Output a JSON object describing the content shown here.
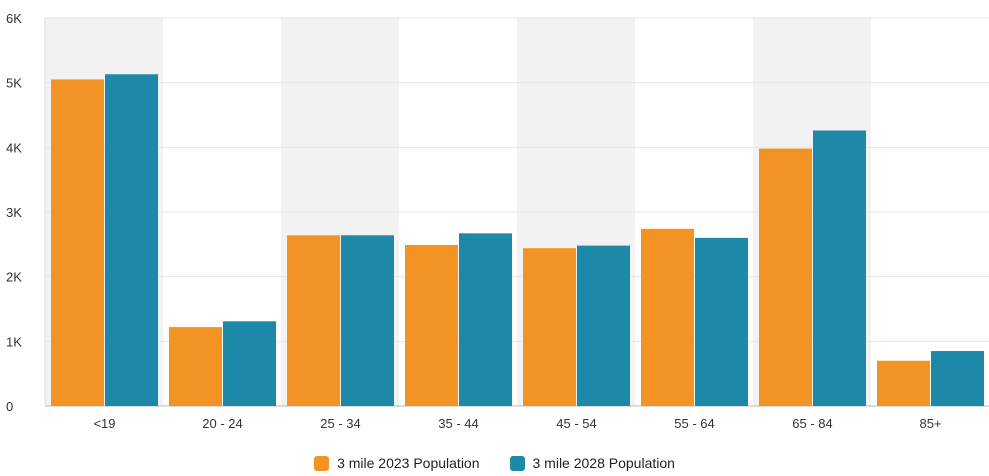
{
  "chart_data": {
    "type": "bar",
    "title": "",
    "xlabel": "",
    "ylabel": "",
    "categories": [
      "<19",
      "20 - 24",
      "25 - 34",
      "35 - 44",
      "45 - 54",
      "55 - 64",
      "65 - 84",
      "85+"
    ],
    "series": [
      {
        "name": "3 mile 2023 Population",
        "color": "#F39323",
        "values": [
          5050,
          1220,
          2640,
          2490,
          2440,
          2740,
          3980,
          700
        ]
      },
      {
        "name": "3 mile 2028 Population",
        "color": "#1E88A8",
        "values": [
          5130,
          1310,
          2640,
          2670,
          2480,
          2600,
          4260,
          850
        ]
      }
    ],
    "ylim": [
      0,
      6000
    ],
    "yticks": [
      {
        "value": 0,
        "label": "0"
      },
      {
        "value": 1000,
        "label": "1K"
      },
      {
        "value": 2000,
        "label": "2K"
      },
      {
        "value": 3000,
        "label": "3K"
      },
      {
        "value": 4000,
        "label": "4K"
      },
      {
        "value": 5000,
        "label": "5K"
      },
      {
        "value": 6000,
        "label": "6K"
      }
    ],
    "grid": true,
    "alternating_band_color": "#F2F2F2",
    "legend_position": "bottom-center"
  }
}
